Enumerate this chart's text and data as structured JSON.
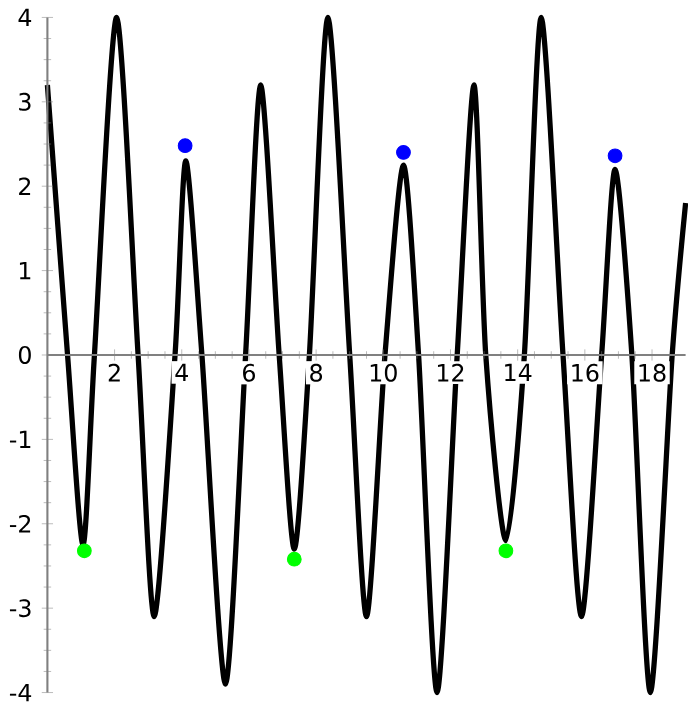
{
  "chart_data": {
    "type": "line",
    "xlim": [
      0,
      19
    ],
    "ylim": [
      -4,
      4
    ],
    "xticks": [
      2,
      4,
      6,
      8,
      10,
      12,
      14,
      16,
      18
    ],
    "yticks": [
      -4,
      -3,
      -2,
      -1,
      0,
      1,
      2,
      3,
      4
    ],
    "series": [
      {
        "type": "line",
        "color": "#000000",
        "marker": "none",
        "x": [
          0,
          0.6,
          1.06,
          1.4,
          2.06,
          2.7,
          3.18,
          3.8,
          4.12,
          4.6,
          5.3,
          5.9,
          6.35,
          6.9,
          7.35,
          7.8,
          8.35,
          9.0,
          9.5,
          10.05,
          10.6,
          11.05,
          11.6,
          12.2,
          12.7,
          13.05,
          13.65,
          14.2,
          14.7,
          15.35,
          15.9,
          16.5,
          16.9,
          17.4,
          17.95,
          18.6,
          19
        ],
        "values": [
          3.2,
          0,
          -2.25,
          0,
          4.0,
          0,
          -3.1,
          0,
          2.3,
          0,
          -3.9,
          0,
          3.2,
          0,
          -2.3,
          0,
          4.0,
          0,
          -3.1,
          0,
          2.25,
          0,
          -4.0,
          0,
          3.2,
          0,
          -2.2,
          0,
          4.0,
          0,
          -3.1,
          0,
          2.2,
          0,
          -4.0,
          0,
          1.8
        ]
      },
      {
        "type": "scatter",
        "color": "#0000ff",
        "marker": "circle",
        "x": [
          4.1,
          10.6,
          16.9
        ],
        "values": [
          2.48,
          2.4,
          2.36
        ]
      },
      {
        "type": "scatter",
        "color": "#00ff00",
        "marker": "circle",
        "x": [
          1.1,
          7.35,
          13.65
        ],
        "values": [
          -2.32,
          -2.42,
          -2.32
        ]
      }
    ]
  }
}
